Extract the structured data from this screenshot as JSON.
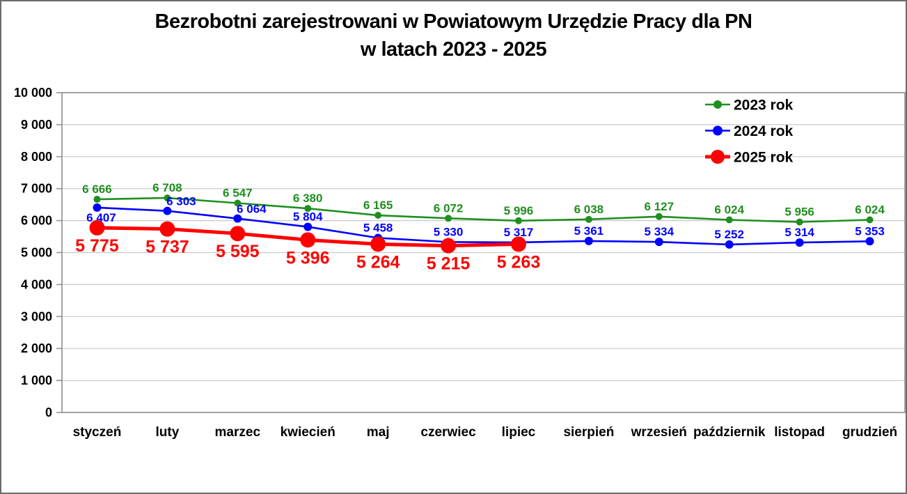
{
  "title": {
    "line1": "Bezrobotni zarejestrowani w Powiatowym Urzędzie Pracy dla PN",
    "line2": "w latach 2023 - 2025"
  },
  "chart_data": {
    "type": "line",
    "title": "Bezrobotni zarejestrowani w Powiatowym Urzędzie Pracy dla PN w latach 2023 - 2025",
    "categories": [
      "styczeń",
      "luty",
      "marzec",
      "kwiecień",
      "maj",
      "czerwiec",
      "lipiec",
      "sierpień",
      "wrzesień",
      "październik",
      "listopad",
      "grudzień"
    ],
    "series": [
      {
        "name": "2023 rok",
        "color": "#1F8F1F",
        "values": [
          6666,
          6708,
          6547,
          6380,
          6165,
          6072,
          5996,
          6038,
          6127,
          6024,
          5956,
          6024
        ],
        "data_labels": [
          "6 666",
          "6 708",
          "6 547",
          "6 380",
          "6 165",
          "6 072",
          "5 996",
          "6 038",
          "6 127",
          "6 024",
          "5 956",
          "6 024"
        ]
      },
      {
        "name": "2024 rok",
        "color": "#0000FF",
        "values": [
          6407,
          6303,
          6064,
          5804,
          5458,
          5330,
          5317,
          5361,
          5334,
          5252,
          5314,
          5353
        ],
        "data_labels": [
          "6 407",
          "6 303",
          "6 064",
          "5 804",
          "5 458",
          "5 330",
          "5 317",
          "5 361",
          "5 334",
          "5 252",
          "5 314",
          "5 353"
        ]
      },
      {
        "name": "2025 rok",
        "color": "#FF0000",
        "values": [
          5775,
          5737,
          5595,
          5396,
          5264,
          5215,
          5263
        ],
        "data_labels": [
          "5 775",
          "5 737",
          "5 595",
          "5 396",
          "5 264",
          "5 215",
          "5 263"
        ]
      }
    ],
    "xlabel": "",
    "ylabel": "",
    "ylim": [
      0,
      10000
    ],
    "ytick_step": 1000,
    "ytick_labels": [
      "0",
      "1 000",
      "2 000",
      "3 000",
      "4 000",
      "5 000",
      "6 000",
      "7 000",
      "8 000",
      "9 000",
      "10 000"
    ],
    "grid": true,
    "legend_position": "top-right"
  }
}
